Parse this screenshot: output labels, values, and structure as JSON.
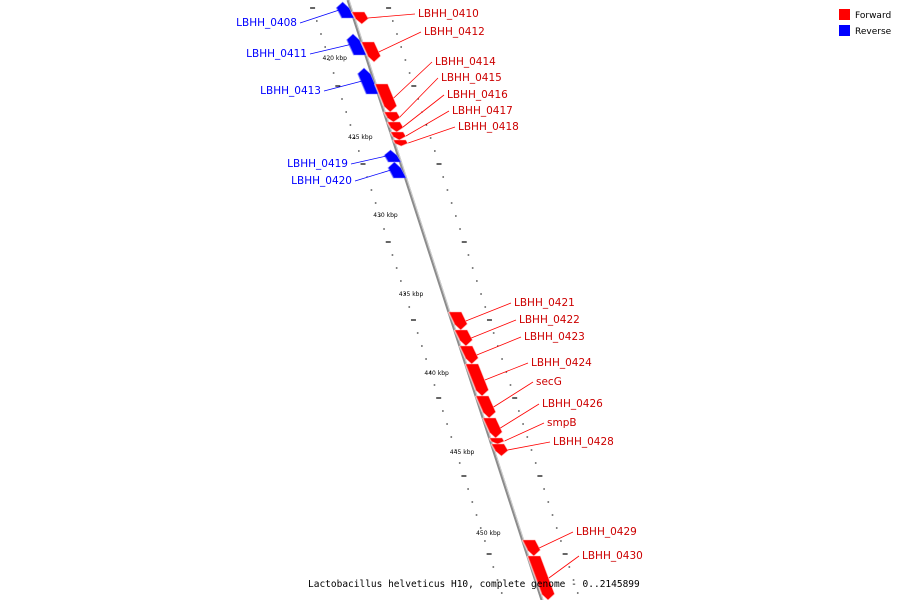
{
  "genome": {
    "caption": "Lactobacillus helveticus H10, complete genome - 0..2145899"
  },
  "legend": [
    {
      "name": "Forward",
      "color": "#ff0000"
    },
    {
      "name": "Reverse",
      "color": "#0000ff"
    }
  ],
  "colors": {
    "forward": "#ff0000",
    "reverse": "#0000ff",
    "backbone": "#8c8c8c"
  },
  "scale_labels": [
    "420 kbp",
    "425 kbp",
    "430 kbp",
    "435 kbp",
    "440 kbp",
    "445 kbp",
    "450 kbp"
  ],
  "genes_reverse": [
    "LBHH_0408",
    "LBHH_0411",
    "LBHH_0413",
    "LBHH_0419",
    "LBHH_0420"
  ],
  "genes_forward": [
    "LBHH_0410",
    "LBHH_0412",
    "LBHH_0414",
    "LBHH_0415",
    "LBHH_0416",
    "LBHH_0417",
    "LBHH_0418",
    "LBHH_0421",
    "LBHH_0422",
    "LBHH_0423",
    "LBHH_0424",
    "secG",
    "LBHH_0426",
    "smpB",
    "LBHH_0428",
    "LBHH_0429",
    "LBHH_0430"
  ]
}
